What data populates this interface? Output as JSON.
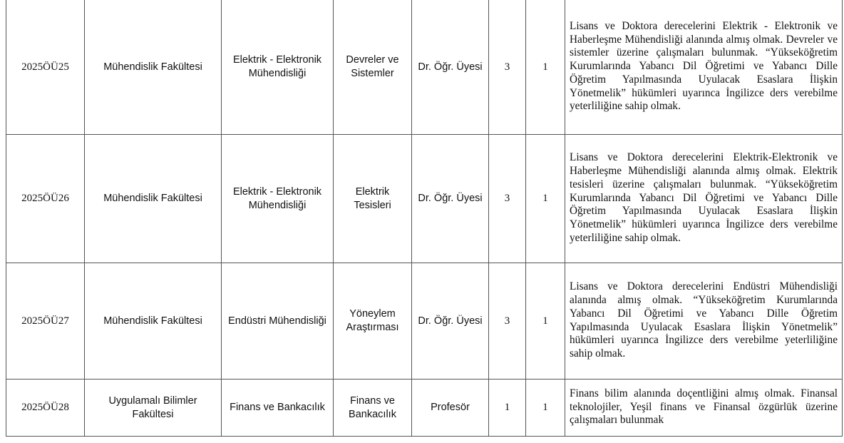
{
  "rows": [
    {
      "code": "2025ÖÜ25",
      "faculty": "Mühendislik Fakültesi",
      "department": "Elektrik - Elektronik Mühendisliği",
      "field": "Devreler ve Sistemler",
      "title": "Dr. Öğr. Üyesi",
      "degree_level": "3",
      "positions": "1",
      "requirements": "Lisans ve Doktora derecelerini Elektrik - Elektronik ve Haberleşme Mühendisliği alanında almış olmak. Devreler ve sistemler üzerine çalışmaları bulunmak. “Yükseköğretim Kurumlarında Yabancı Dil Öğretimi ve Yabancı Dille Öğretim Yapılmasında Uyulacak Esaslara İlişkin Yönetmelik” hükümleri uyarınca İngilizce ders verebilme yeterliliğine sahip olmak."
    },
    {
      "code": "2025ÖÜ26",
      "faculty": "Mühendislik Fakültesi",
      "department": "Elektrik - Elektronik Mühendisliği",
      "field": "Elektrik Tesisleri",
      "title": "Dr. Öğr. Üyesi",
      "degree_level": "3",
      "positions": "1",
      "requirements": "Lisans ve Doktora derecelerini Elektrik-Elektronik ve Haberleşme Mühendisliği alanında almış olmak. Elektrik tesisleri üzerine çalışmaları bulunmak. “Yükseköğretim Kurumlarında Yabancı Dil Öğretimi ve Yabancı Dille Öğretim Yapılmasında Uyulacak Esaslara İlişkin Yönetmelik” hükümleri uyarınca İngilizce ders verebilme yeterliliğine sahip olmak."
    },
    {
      "code": "2025ÖÜ27",
      "faculty": "Mühendislik Fakültesi",
      "department": "Endüstri Mühendisliği",
      "field": "Yöneylem Araştırması",
      "title": "Dr. Öğr. Üyesi",
      "degree_level": "3",
      "positions": "1",
      "requirements": "Lisans ve Doktora derecelerini Endüstri Mühendisliği alanında almış olmak. “Yükseköğretim Kurumlarında Yabancı Dil Öğretimi ve Yabancı Dille Öğretim Yapılmasında Uyulacak Esaslara İlişkin Yönetmelik” hükümleri uyarınca İngilizce ders verebilme yeterliliğine sahip olmak."
    },
    {
      "code": "2025ÖÜ28",
      "faculty": "Uygulamalı Bilimler Fakültesi",
      "department": "Finans ve Bankacılık",
      "field": "Finans ve Bankacılık",
      "title": "Profesör",
      "degree_level": "1",
      "positions": "1",
      "requirements": "Finans bilim alanında doçentliğini almış olmak. Finansal teknolojiler, Yeşil finans ve Finansal özgürlük üzerine çalışmaları bulunmak"
    }
  ]
}
